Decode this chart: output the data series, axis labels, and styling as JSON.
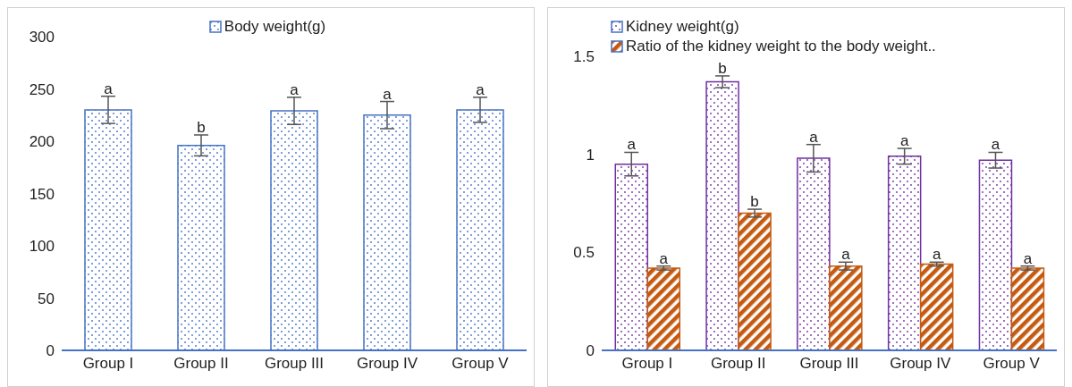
{
  "chart_data": [
    {
      "type": "bar",
      "categories": [
        "Group I",
        "Group II",
        "Group III",
        "Group IV",
        "Group V"
      ],
      "series": [
        {
          "name": "Body weight(g)",
          "color": "#4472c4",
          "values": [
            230,
            196,
            229,
            225,
            230
          ],
          "errors": [
            13,
            10,
            13,
            13,
            12
          ]
        }
      ],
      "ylim": [
        0,
        300
      ],
      "yticks": [
        0,
        50,
        100,
        150,
        200,
        250,
        300
      ],
      "grid": false,
      "legend": "top",
      "annotations": [
        {
          "text": "a",
          "x": "Group I",
          "y": 230
        },
        {
          "text": "b",
          "x": "Group II",
          "y": 196
        },
        {
          "text": "a",
          "x": "Group III",
          "y": 229
        },
        {
          "text": "a",
          "x": "Group IV",
          "y": 225
        },
        {
          "text": "a",
          "x": "Group V",
          "y": 230
        }
      ]
    },
    {
      "type": "bar",
      "categories": [
        "Group I",
        "Group II",
        "Group III",
        "Group IV",
        "Group V"
      ],
      "series": [
        {
          "name": "Kidney weight(g)",
          "color": "#7030a0",
          "values": [
            0.95,
            1.37,
            0.98,
            0.99,
            0.97
          ],
          "errors": [
            0.06,
            0.03,
            0.07,
            0.04,
            0.04
          ]
        },
        {
          "name": "Ratio of the kidney weight to the body weight..",
          "color": "#c55a11",
          "values": [
            0.42,
            0.7,
            0.43,
            0.44,
            0.42
          ],
          "errors": [
            0.01,
            0.02,
            0.02,
            0.01,
            0.01
          ]
        }
      ],
      "ylim": [
        0,
        1.5
      ],
      "yticks": [
        0,
        0.5,
        1,
        1.5
      ],
      "grid": false,
      "legend": "top",
      "annotations": [
        {
          "text": "a",
          "x": "Group I",
          "y": 0.95
        },
        {
          "text": "a",
          "x": "Group I",
          "y": 0.42
        },
        {
          "text": "b",
          "x": "Group II",
          "y": 1.37
        },
        {
          "text": "b",
          "x": "Group II",
          "y": 0.7
        },
        {
          "text": "a",
          "x": "Group III",
          "y": 0.98
        },
        {
          "text": "a",
          "x": "Group III",
          "y": 0.43
        },
        {
          "text": "a",
          "x": "Group IV",
          "y": 0.99
        },
        {
          "text": "a",
          "x": "Group IV",
          "y": 0.44
        },
        {
          "text": "a",
          "x": "Group V",
          "y": 0.97
        },
        {
          "text": "a",
          "x": "Group V",
          "y": 0.42
        }
      ]
    }
  ]
}
